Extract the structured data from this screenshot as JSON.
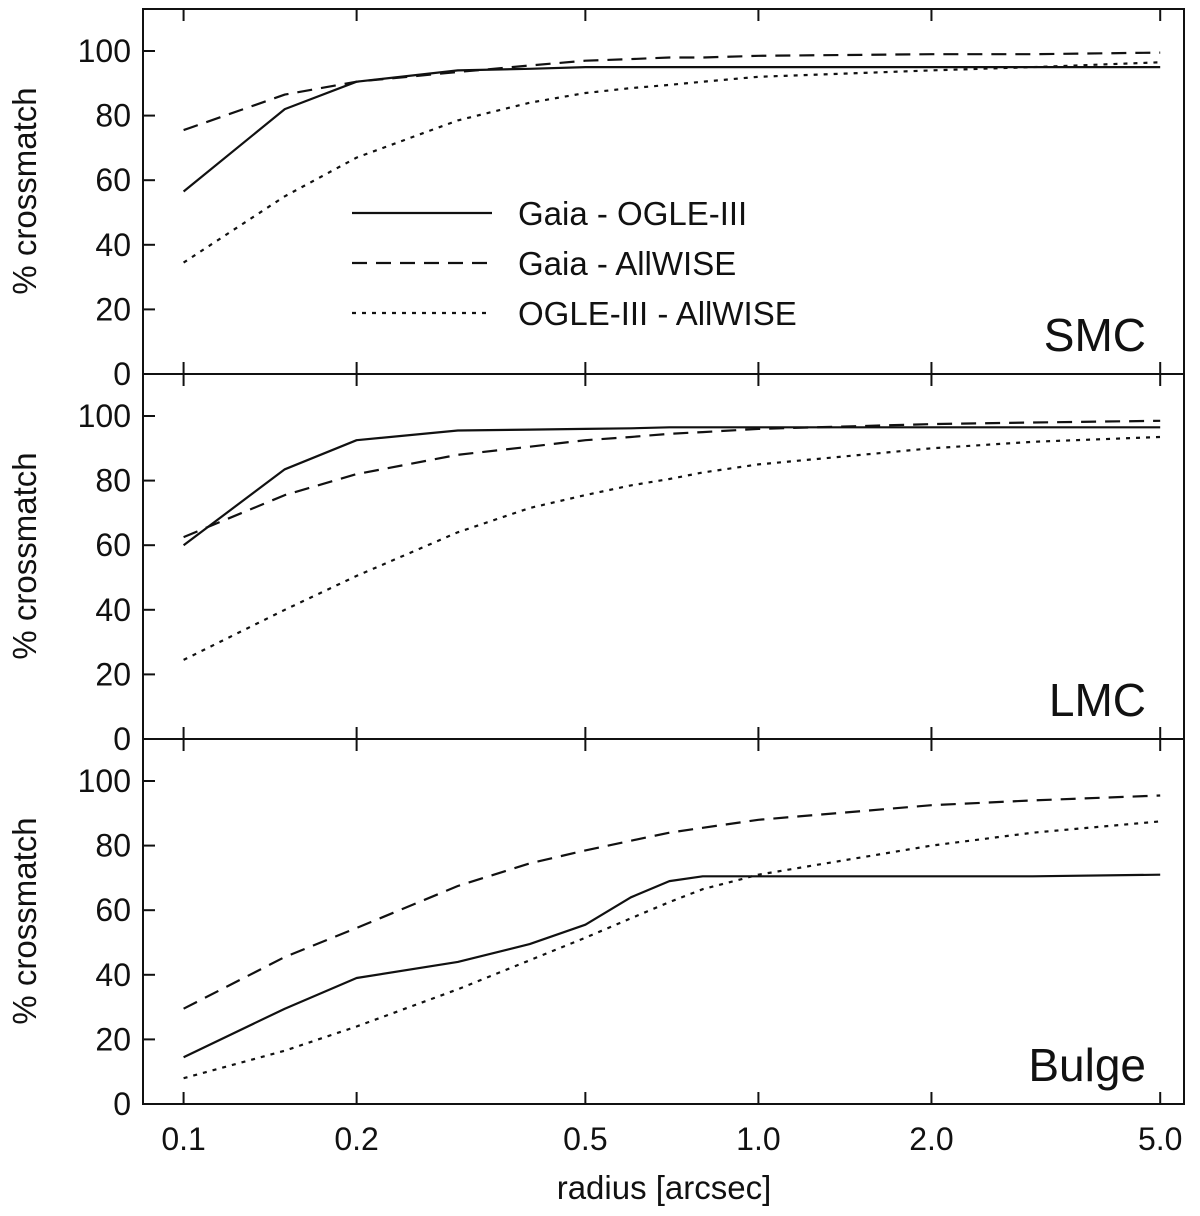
{
  "chart_data": {
    "type": "line",
    "xscale": "log",
    "xlabel": "radius [arcsec]",
    "xlim": [
      0.085,
      5.5
    ],
    "xticks": [
      "0.1",
      "0.2",
      "0.5",
      "1.0",
      "2.0",
      "5.0"
    ],
    "ylabel": "% crossmatch",
    "ylim": [
      0,
      113
    ],
    "yticks": [
      "0",
      "20",
      "40",
      "60",
      "80",
      "100"
    ],
    "legend": {
      "placement": "center-left in top panel",
      "entries": [
        {
          "name": "Gaia - OGLE-III",
          "style": "solid"
        },
        {
          "name": "Gaia - AllWISE",
          "style": "dashed"
        },
        {
          "name": "OGLE-III - AllWISE",
          "style": "dotted"
        }
      ]
    },
    "x": [
      0.1,
      0.15,
      0.2,
      0.3,
      0.4,
      0.5,
      0.6,
      0.7,
      0.8,
      1.0,
      2.0,
      3.0,
      5.0
    ],
    "panels": [
      {
        "label": "SMC",
        "series": [
          {
            "name": "Gaia - OGLE-III",
            "style": "solid",
            "values": [
              56.5,
              82,
              90.5,
              94,
              94.5,
              95,
              95,
              95,
              95,
              95,
              95,
              95,
              95
            ]
          },
          {
            "name": "Gaia - AllWISE",
            "style": "dashed",
            "values": [
              75.5,
              86.5,
              90.5,
              93.5,
              95.5,
              97,
              97.5,
              98,
              98,
              98.5,
              99,
              99,
              99.5
            ]
          },
          {
            "name": "OGLE-III - AllWISE",
            "style": "dotted",
            "values": [
              34.5,
              55,
              67,
              78.5,
              84,
              87,
              88.5,
              89.5,
              90.5,
              92,
              94,
              95,
              96.5
            ]
          }
        ]
      },
      {
        "label": "LMC",
        "series": [
          {
            "name": "Gaia - OGLE-III",
            "style": "solid",
            "values": [
              60,
              83.5,
              92.5,
              95.5,
              95.8,
              96,
              96.2,
              96.5,
              96.5,
              96.5,
              96.5,
              96.5,
              96.5
            ]
          },
          {
            "name": "Gaia - AllWISE",
            "style": "dashed",
            "values": [
              62.5,
              75.5,
              82,
              88,
              90.5,
              92.5,
              93.5,
              94.5,
              95,
              96,
              97.5,
              98,
              98.5
            ]
          },
          {
            "name": "OGLE-III - AllWISE",
            "style": "dotted",
            "values": [
              24.5,
              40,
              50.5,
              64,
              71.5,
              75.5,
              78.5,
              80.5,
              82.5,
              85,
              90,
              92,
              93.5
            ]
          }
        ]
      },
      {
        "label": "Bulge",
        "series": [
          {
            "name": "Gaia - OGLE-III",
            "style": "solid",
            "values": [
              14.5,
              29.5,
              39,
              44,
              49.5,
              55.5,
              64,
              69,
              70.5,
              70.5,
              70.5,
              70.5,
              71
            ]
          },
          {
            "name": "Gaia - AllWISE",
            "style": "dashed",
            "values": [
              29.5,
              45.5,
              54.5,
              67.5,
              74.5,
              78.5,
              81.5,
              84,
              85.5,
              88,
              92.5,
              94,
              95.5
            ]
          },
          {
            "name": "OGLE-III - AllWISE",
            "style": "dotted",
            "values": [
              8,
              16.5,
              24,
              35.5,
              44.5,
              51.5,
              57.5,
              62.5,
              66.5,
              71,
              80,
              84,
              87.5
            ]
          }
        ]
      }
    ]
  }
}
